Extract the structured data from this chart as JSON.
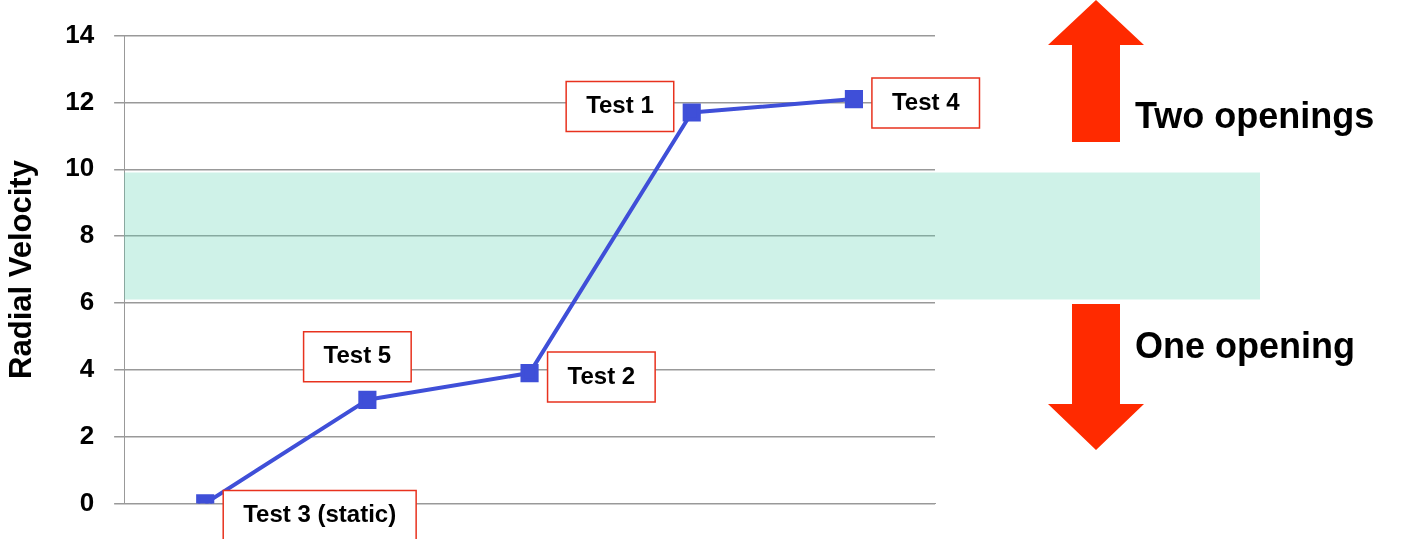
{
  "chart_data": {
    "type": "line",
    "ylabel": "Radial Velocity",
    "categories": [
      null,
      null,
      null,
      null,
      null
    ],
    "series": [
      {
        "color": "#3f4fd8",
        "values": [
          0,
          3.1,
          3.9,
          11.7,
          12.1
        ],
        "value_labels": [
          "Test 3 (static)",
          "Test 5",
          "Test 2",
          "Test 1",
          "Test 4"
        ]
      }
    ],
    "ylim": [
      0,
      14
    ],
    "yticks": [
      0,
      2,
      4,
      6,
      8,
      10,
      12,
      14
    ],
    "grid": "y",
    "legend": false,
    "marker": "square",
    "line_style": "solid",
    "bands": [
      {
        "axis": "y",
        "from": 6.1,
        "to": 9.9,
        "color": "#5fd3b3"
      }
    ],
    "annotations": [
      "Two openings",
      "One opening"
    ]
  }
}
